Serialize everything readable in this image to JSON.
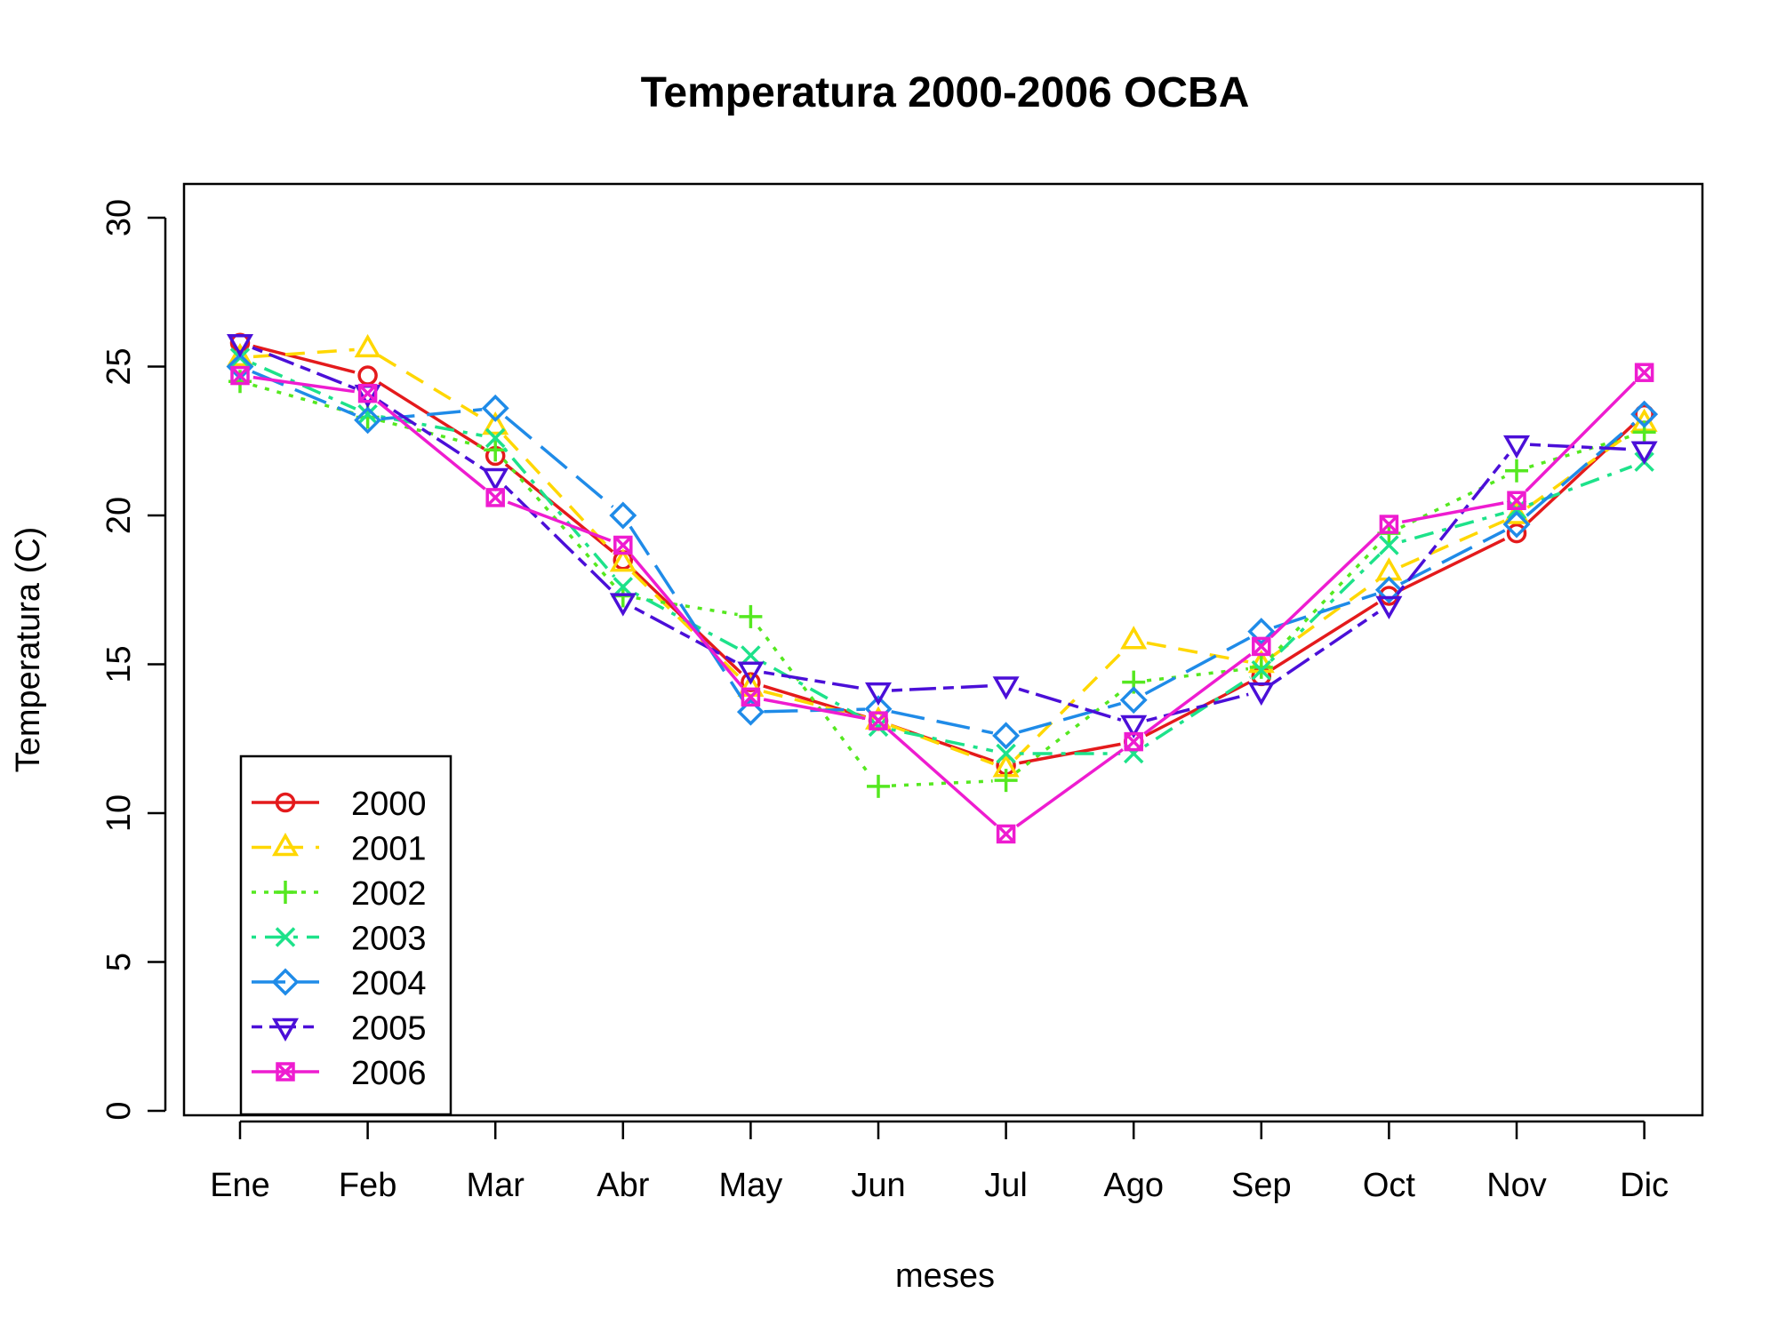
{
  "chart_data": {
    "type": "line",
    "title": "Temperatura 2000-2006 OCBA",
    "xlabel": "meses",
    "ylabel": "Temperatura (C)",
    "categories": [
      "Ene",
      "Feb",
      "Mar",
      "Abr",
      "May",
      "Jun",
      "Jul",
      "Ago",
      "Sep",
      "Oct",
      "Nov",
      "Dic"
    ],
    "ylim": [
      0,
      30
    ],
    "yticks": [
      "0",
      "5",
      "10",
      "15",
      "20",
      "25",
      "30"
    ],
    "grid": false,
    "legend_position": "bottom-left",
    "series": [
      {
        "name": "2000",
        "color": "#e41a1c",
        "marker": "circle",
        "dash": "solid",
        "values": [
          25.8,
          24.7,
          22.0,
          18.5,
          14.4,
          13.1,
          11.6,
          12.4,
          14.6,
          17.3,
          19.4,
          23.4
        ]
      },
      {
        "name": "2001",
        "color": "#ffd700",
        "marker": "triangle-up",
        "dash": "dashed",
        "values": [
          25.3,
          25.6,
          23.0,
          18.4,
          14.2,
          13.1,
          11.5,
          15.8,
          15.0,
          18.1,
          20.0,
          23.1
        ]
      },
      {
        "name": "2002",
        "color": "#55e820",
        "marker": "plus",
        "dash": "dotted",
        "values": [
          24.5,
          23.3,
          22.2,
          17.3,
          16.6,
          10.9,
          11.1,
          14.4,
          14.9,
          19.4,
          21.5,
          22.8
        ]
      },
      {
        "name": "2003",
        "color": "#1de28a",
        "marker": "cross",
        "dash": "dotdash",
        "values": [
          25.3,
          23.4,
          22.6,
          17.6,
          15.3,
          12.9,
          12.0,
          12.0,
          14.8,
          19.0,
          20.2,
          21.8
        ]
      },
      {
        "name": "2004",
        "color": "#1f8be8",
        "marker": "diamond",
        "dash": "longdash",
        "values": [
          25.0,
          23.2,
          23.6,
          20.0,
          13.4,
          13.5,
          12.6,
          13.8,
          16.1,
          17.5,
          19.7,
          23.4
        ]
      },
      {
        "name": "2005",
        "color": "#4b0fd8",
        "marker": "triangle-down",
        "dash": "twodash",
        "values": [
          25.8,
          24.1,
          21.3,
          17.1,
          14.8,
          14.1,
          14.3,
          13.0,
          14.1,
          17.0,
          22.4,
          22.2
        ]
      },
      {
        "name": "2006",
        "color": "#ee1cd0",
        "marker": "square-x",
        "dash": "solid",
        "values": [
          24.7,
          24.1,
          20.6,
          19.0,
          13.9,
          13.1,
          9.3,
          12.4,
          15.6,
          19.7,
          20.5,
          24.8
        ]
      }
    ]
  }
}
